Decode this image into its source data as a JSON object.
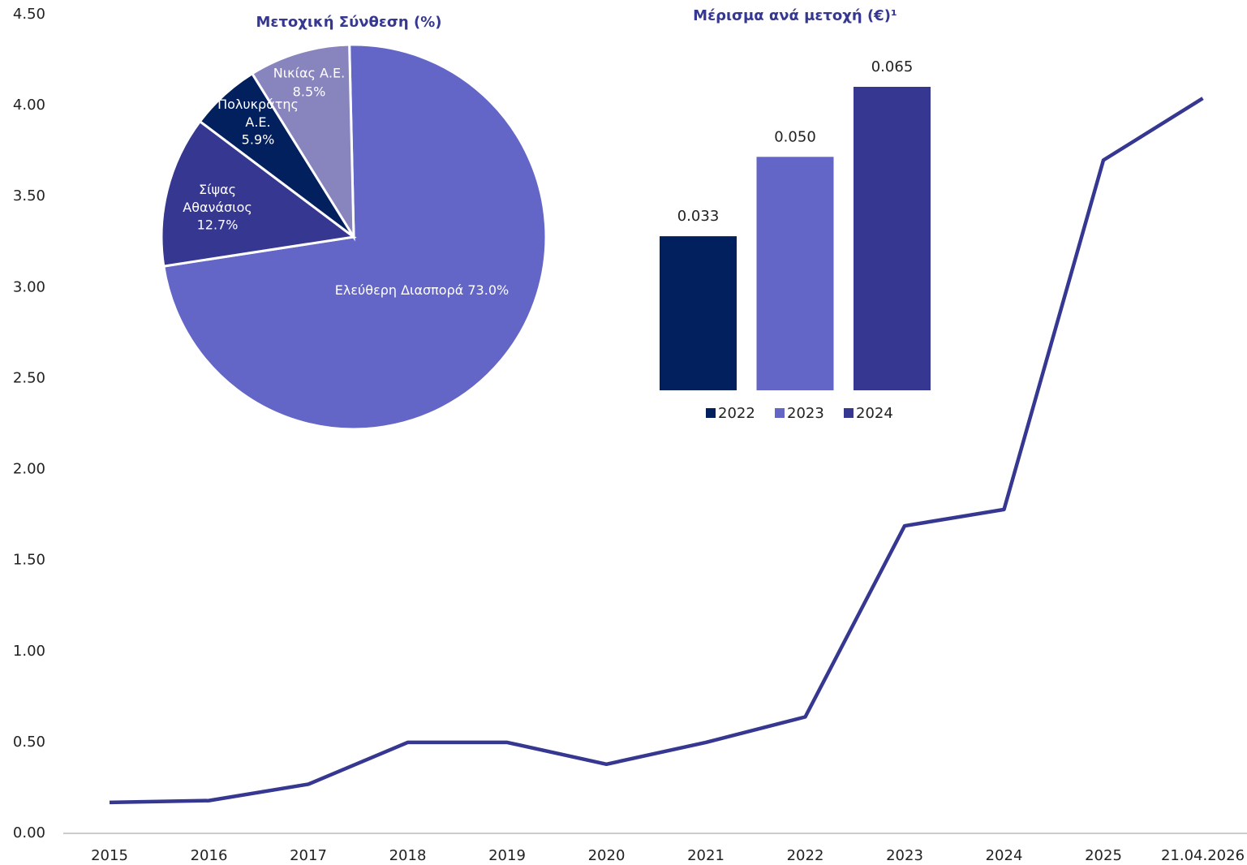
{
  "chart_data": [
    {
      "type": "line",
      "categories": [
        "2015",
        "2016",
        "2017",
        "2018",
        "2019",
        "2020",
        "2021",
        "2022",
        "2023",
        "2024",
        "2025",
        "21.04.2026"
      ],
      "series": [
        {
          "color": "#363791",
          "values": [
            0.17,
            0.18,
            0.27,
            0.5,
            0.5,
            0.38,
            0.5,
            0.64,
            1.69,
            1.78,
            3.7,
            4.04
          ]
        }
      ],
      "ylim": [
        0,
        4.5
      ],
      "yticks": [
        {
          "value": 0,
          "label": "0.00"
        },
        {
          "value": 0.5,
          "label": "0.50"
        },
        {
          "value": 1,
          "label": "1.00"
        },
        {
          "value": 1.5,
          "label": "1.50"
        },
        {
          "value": 2,
          "label": "2.00"
        },
        {
          "value": 2.5,
          "label": "2.50"
        },
        {
          "value": 3,
          "label": "3.00"
        },
        {
          "value": 3.5,
          "label": "3.50"
        },
        {
          "value": 4,
          "label": "4.00"
        },
        {
          "value": 4.5,
          "label": "4.50"
        }
      ],
      "grid": false
    },
    {
      "type": "pie",
      "title": "Μετοχική Σύνθεση (%)",
      "categories": [
        "Ελεύθερη Διασπορά",
        "Σίψας Αθανάσιος",
        "Πολυκράτης Α.Ε.",
        "Νικίας Α.Ε."
      ],
      "values": [
        73.0,
        12.7,
        5.9,
        8.5
      ],
      "value_labels": [
        "73.0%",
        "12.7%",
        "5.9%",
        "8.5%"
      ],
      "colors": [
        "#6366c6",
        "#363791",
        "#021f5e",
        "#8884bd"
      ]
    },
    {
      "type": "bar",
      "title": "Μέρισμα ανά μετοχή (€)¹",
      "categories": [
        "2022",
        "2023",
        "2024"
      ],
      "values": [
        0.033,
        0.05,
        0.065
      ],
      "value_labels": [
        "0.033",
        "0.050",
        "0.065"
      ],
      "colors": [
        "#021f5e",
        "#6366c6",
        "#363791"
      ],
      "legend": "bottom"
    }
  ]
}
